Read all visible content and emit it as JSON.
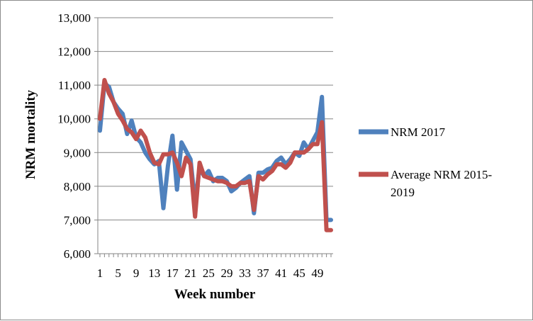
{
  "chart_data": {
    "type": "line",
    "xlabel": "Week number",
    "ylabel": "NRM mortality",
    "ylim": [
      6000,
      13000
    ],
    "yticks": [
      "6,000",
      "7,000",
      "8,000",
      "9,000",
      "10,000",
      "11,000",
      "12,000",
      "13,000"
    ],
    "x_tick_labels": [
      "1",
      "5",
      "9",
      "13",
      "17",
      "21",
      "25",
      "29",
      "33",
      "37",
      "41",
      "45",
      "49"
    ],
    "x_tick_weeks": [
      1,
      5,
      9,
      13,
      17,
      21,
      25,
      29,
      33,
      37,
      41,
      45,
      49
    ],
    "grid": "horizontal",
    "legend": "right",
    "x": [
      1,
      2,
      3,
      4,
      5,
      6,
      7,
      8,
      9,
      10,
      11,
      12,
      13,
      14,
      15,
      16,
      17,
      18,
      19,
      20,
      21,
      22,
      23,
      24,
      25,
      26,
      27,
      28,
      29,
      30,
      31,
      32,
      33,
      34,
      35,
      36,
      37,
      38,
      39,
      40,
      41,
      42,
      43,
      44,
      45,
      46,
      47,
      48,
      49,
      50,
      51,
      52
    ],
    "series": [
      {
        "name": "NRM 2017",
        "color": "#4f81bd",
        "values": [
          9650,
          11050,
          10950,
          10500,
          10300,
          10150,
          9550,
          9950,
          9450,
          9300,
          9000,
          8800,
          8650,
          8750,
          7350,
          8600,
          9500,
          7900,
          9300,
          9050,
          8800,
          7500,
          8550,
          8300,
          8450,
          8150,
          8250,
          8250,
          8150,
          7850,
          7950,
          8100,
          8200,
          8300,
          7200,
          8400,
          8400,
          8500,
          8550,
          8750,
          8850,
          8650,
          8800,
          9000,
          8900,
          9300,
          9100,
          9350,
          9600,
          10650,
          7000,
          7000
        ]
      },
      {
        "name": "Average NRM 2015-2019",
        "color": "#c0504d",
        "values": [
          10000,
          11150,
          10750,
          10500,
          10150,
          9950,
          9700,
          9600,
          9400,
          9650,
          9450,
          9000,
          8700,
          8650,
          8950,
          8950,
          9000,
          8700,
          8300,
          8850,
          8650,
          7100,
          8700,
          8300,
          8250,
          8200,
          8150,
          8150,
          8100,
          8000,
          8000,
          8100,
          8100,
          8150,
          7300,
          8300,
          8200,
          8350,
          8450,
          8650,
          8650,
          8550,
          8700,
          9000,
          9000,
          9000,
          9100,
          9250,
          9250,
          9900,
          6700,
          6700
        ]
      }
    ]
  }
}
